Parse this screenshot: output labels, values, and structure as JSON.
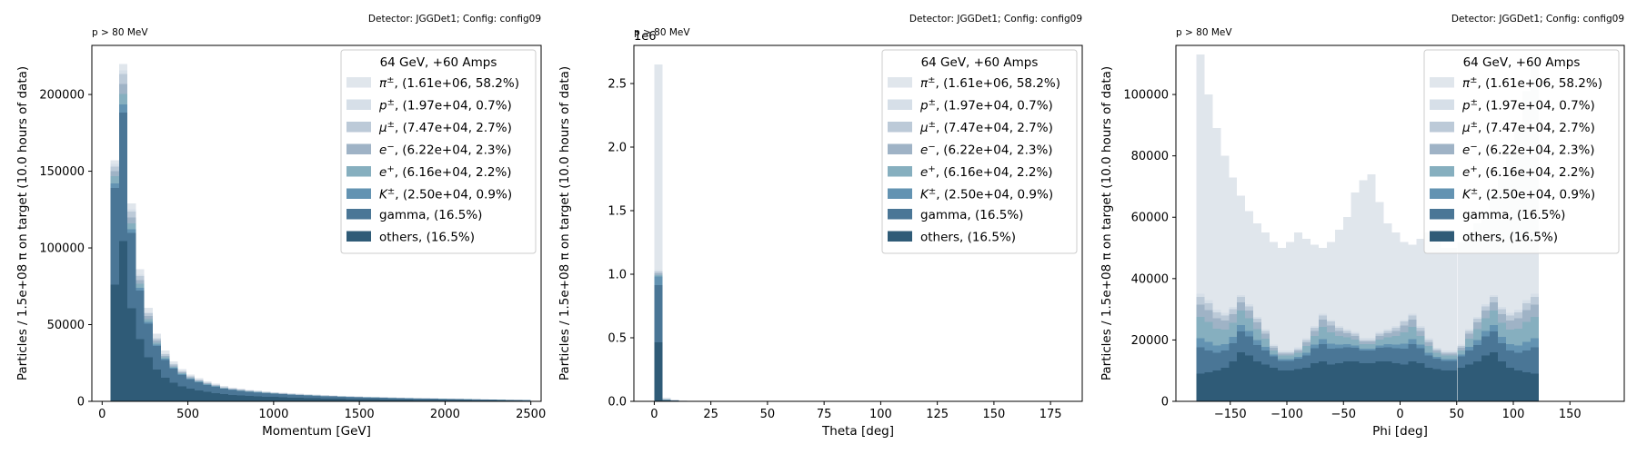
{
  "legend": {
    "title": "64 GeV, +60 Amps",
    "entries": [
      {
        "label": "π±, (1.61e+06, 58.2%)",
        "sym": "π",
        "sup": "±",
        "rest": ", (1.61e+06, 58.2%)",
        "color": "#e0e6ec"
      },
      {
        "label": "p±, (1.97e+04, 0.7%)",
        "sym": "p",
        "sup": "±",
        "rest": ", (1.97e+04, 0.7%)",
        "color": "#d6dfe8"
      },
      {
        "label": "μ±, (7.47e+04, 2.7%)",
        "sym": "μ",
        "sup": "±",
        "rest": ", (7.47e+04, 2.7%)",
        "color": "#bccad8"
      },
      {
        "label": "e−, (6.22e+04, 2.3%)",
        "sym": "e",
        "sup": "−",
        "rest": ", (6.22e+04, 2.3%)",
        "color": "#9fb3c6"
      },
      {
        "label": "e+, (6.16e+04, 2.2%)",
        "sym": "e",
        "sup": "+",
        "rest": ", (6.16e+04, 2.2%)",
        "color": "#86afbf"
      },
      {
        "label": "K±, (2.50e+04, 0.9%)",
        "sym": "K",
        "sup": "±",
        "rest": ", (2.50e+04, 0.9%)",
        "color": "#6393b2"
      },
      {
        "label": "gamma, (16.5%)",
        "sym": "",
        "sup": "",
        "rest": "gamma, (16.5%)",
        "color": "#4a7696"
      },
      {
        "label": "others, (16.5%)",
        "sym": "",
        "sup": "",
        "rest": "others, (16.5%)",
        "color": "#2f5b77"
      }
    ]
  },
  "chart_data": [
    {
      "type": "bar",
      "stacked": true,
      "panel": "momentum",
      "title_left": "p > 80 MeV",
      "title_right": "Detector: JGGDet1; Config: config09",
      "xlabel": "Momentum [GeV]",
      "ylabel": "Particles / 1.5e+08 π on target (10.0 hours of data)",
      "xlim": [
        -60,
        2560
      ],
      "ylim": [
        0,
        232000
      ],
      "xticks": [
        0,
        500,
        1000,
        1500,
        2000,
        2500
      ],
      "yticks": [
        0,
        50000,
        100000,
        150000,
        200000
      ],
      "ytick_labels": [
        "0",
        "50000",
        "100000",
        "150000",
        "200000"
      ],
      "scale_label": "",
      "bin_start": 50,
      "bin_width": 49,
      "totals": [
        157000,
        220000,
        129000,
        86000,
        61000,
        44000,
        33000,
        26000,
        21000,
        17500,
        15000,
        13000,
        11500,
        10000,
        9000,
        8200,
        7500,
        7000,
        6500,
        6000,
        5600,
        5200,
        4900,
        4600,
        4300,
        4000,
        3800,
        3600,
        3400,
        3200,
        3000,
        2900,
        2750,
        2600,
        2450,
        2300,
        2200,
        2100,
        2000,
        1900,
        1800,
        1700,
        1600,
        1500,
        1400,
        1300,
        1200,
        1100,
        1000,
        900
      ],
      "fractions": [
        [
          0.015,
          0.01,
          0.02,
          0.02,
          0.03,
          0.02,
          0.4,
          0.485
        ],
        [
          0.02,
          0.01,
          0.03,
          0.03,
          0.03,
          0.025,
          0.38,
          0.475
        ],
        [
          0.03,
          0.01,
          0.03,
          0.03,
          0.03,
          0.02,
          0.38,
          0.47
        ],
        [
          0.04,
          0.01,
          0.03,
          0.03,
          0.03,
          0.02,
          0.37,
          0.47
        ],
        [
          0.05,
          0.01,
          0.03,
          0.03,
          0.03,
          0.02,
          0.36,
          0.47
        ],
        [
          0.06,
          0.01,
          0.03,
          0.03,
          0.03,
          0.02,
          0.35,
          0.47
        ]
      ]
    },
    {
      "type": "bar",
      "stacked": true,
      "panel": "theta",
      "title_left": "p > 80 MeV",
      "title_right": "Detector: JGGDet1; Config: config09",
      "xlabel": "Theta [deg]",
      "ylabel": "Particles / 1.5e+08 π on target (10.0 hours of data)",
      "xlim": [
        -9,
        189
      ],
      "ylim": [
        0,
        2800000
      ],
      "xticks": [
        0,
        25,
        50,
        75,
        100,
        125,
        150,
        175
      ],
      "yticks": [
        0,
        500000,
        1000000,
        1500000,
        2000000,
        2500000
      ],
      "ytick_labels": [
        "0.0",
        "0.5",
        "1.0",
        "1.5",
        "2.0",
        "2.5"
      ],
      "scale_label": "1e6",
      "bin_start": 0,
      "bin_width": 3.6,
      "totals": [
        2650000,
        28000,
        15000,
        8000,
        5000,
        3000,
        2000,
        1500,
        1000,
        700,
        500,
        400,
        300,
        250,
        200,
        150,
        120,
        100,
        80,
        60
      ],
      "fractions": [
        [
          0.61,
          0.005,
          0.005,
          0.005,
          0.005,
          0.025,
          0.17,
          0.175
        ],
        [
          0.4,
          0.02,
          0.05,
          0.05,
          0.05,
          0.03,
          0.2,
          0.2
        ],
        [
          0.4,
          0.02,
          0.05,
          0.05,
          0.05,
          0.03,
          0.2,
          0.2
        ]
      ]
    },
    {
      "type": "bar",
      "stacked": true,
      "panel": "phi",
      "title_left": "p > 80 MeV",
      "title_right": "Detector: JGGDet1; Config: config09",
      "xlabel": "Phi [deg]",
      "ylabel": "Particles / 1.5e+08 π on target (10.0 hours of data)",
      "xlim": [
        -198,
        198
      ],
      "ylim": [
        0,
        116000
      ],
      "xticks": [
        -150,
        -100,
        -50,
        0,
        50,
        100,
        150
      ],
      "xtick_labels": [
        "−150",
        "−100",
        "−50",
        "0",
        "50",
        "100",
        "150"
      ],
      "yticks": [
        0,
        20000,
        40000,
        60000,
        80000,
        100000
      ],
      "ytick_labels": [
        "0",
        "20000",
        "40000",
        "60000",
        "80000",
        "100000"
      ],
      "scale_label": "",
      "bin_start": -180,
      "bin_width": 7.2,
      "totals": [
        113000,
        100000,
        89000,
        80000,
        73000,
        67000,
        62000,
        58000,
        55000,
        52000,
        50000,
        52000,
        55000,
        53000,
        51000,
        50000,
        52000,
        56000,
        60000,
        68000,
        72000,
        74000,
        65000,
        58000,
        55000,
        52000,
        51000,
        53000,
        55000,
        52000,
        50000,
        50000,
        52000,
        55000,
        58000,
        62000,
        67000,
        73000,
        81000,
        90000,
        101000,
        113000
      ],
      "blue_lower": [
        34000,
        32000,
        29000,
        28000,
        30000,
        34000,
        31000,
        27000,
        23000,
        18000,
        16000,
        16000,
        17000,
        20000,
        24000,
        28000,
        26000,
        24000,
        23000,
        22000,
        20000,
        20000,
        22000,
        23000,
        24000,
        26000,
        28000,
        24000,
        20000,
        17000,
        16000,
        16000,
        18000,
        23000,
        27000,
        31000,
        34000,
        30000,
        28000,
        29000,
        32000,
        34000
      ],
      "others_level": [
        9000,
        9500,
        10000,
        11000,
        13000,
        16000,
        15000,
        13000,
        12000,
        11000,
        10000,
        10000,
        10500,
        11000,
        12500,
        13000,
        12000,
        12500,
        13000,
        13000,
        12500,
        12500,
        13000,
        13000,
        12500,
        12000,
        13000,
        12500,
        11000,
        10500,
        10000,
        10000,
        11000,
        12000,
        13000,
        15000,
        16000,
        13000,
        11000,
        10000,
        9500,
        9000
      ]
    }
  ]
}
